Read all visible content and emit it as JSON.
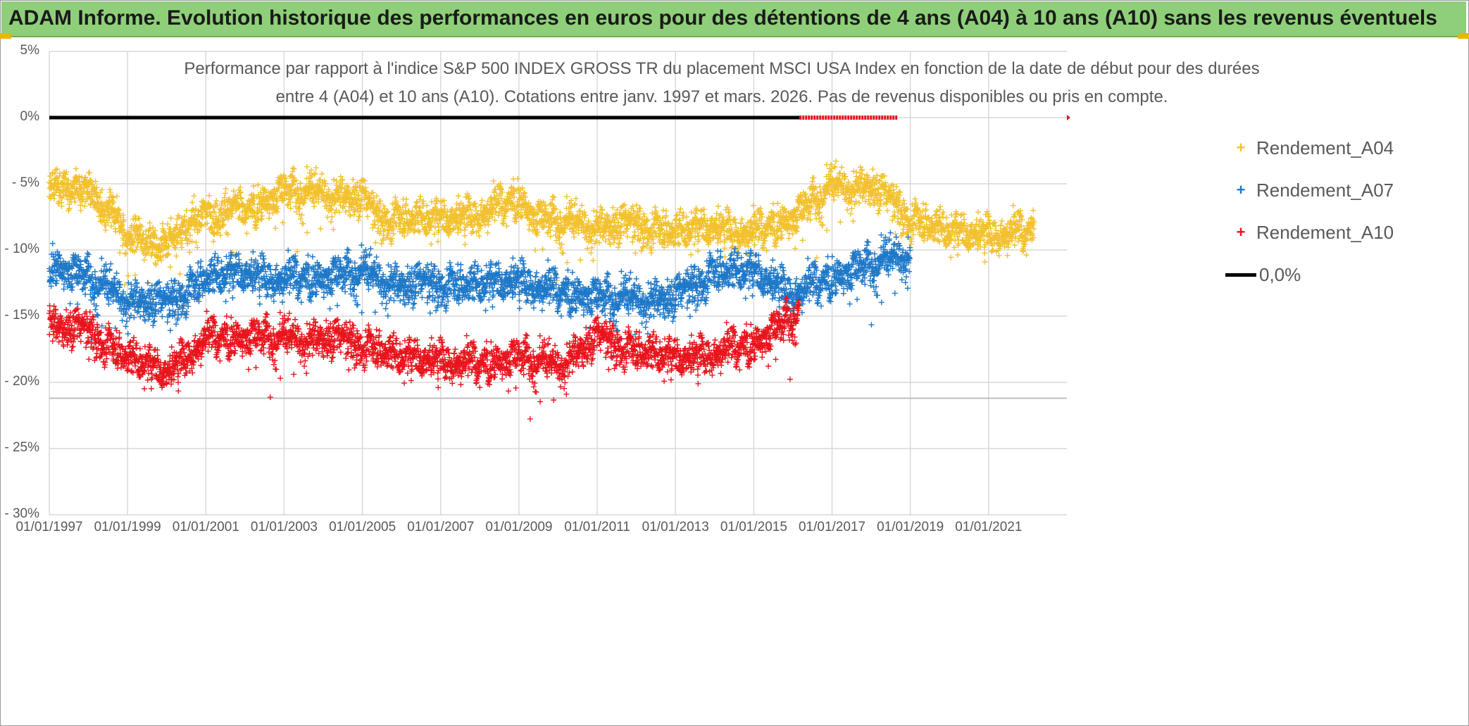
{
  "header": {
    "title": "ADAM Informe. Evolution historique des performances en euros pour des détentions de 4 ans (A04) à 10 ans (A10) sans les revenus éventuels"
  },
  "colors": {
    "header_bg": "#8fcf7a",
    "a04": "#f2c12e",
    "a07": "#1f78c8",
    "a10": "#e8141c",
    "zero": "#000000"
  },
  "chart_data": {
    "type": "scatter",
    "title_line1": "Performance par rapport à l'indice S&P 500 INDEX GROSS TR  du placement MSCI USA Index en fonction de la date de début pour des durées",
    "title_line2": "entre 4 (A04) et 10 ans (A10). Cotations entre janv. 1997 et mars. 2026. Pas de revenus disponibles ou pris en compte.",
    "x_type": "date",
    "xlim": [
      "01/01/1997",
      "01/01/2023"
    ],
    "x_ticks": [
      "01/01/1997",
      "01/01/1999",
      "01/01/2001",
      "01/01/2003",
      "01/01/2005",
      "01/01/2007",
      "01/01/2009",
      "01/01/2011",
      "01/01/2013",
      "01/01/2015",
      "01/01/2017",
      "01/01/2019",
      "01/01/2021"
    ],
    "ylim": [
      -30,
      5
    ],
    "y_ticks": [
      5,
      0,
      -5,
      -10,
      -15,
      -20,
      -25,
      -30
    ],
    "y_tick_labels": [
      "5%",
      "0%",
      "- 5%",
      "- 10%",
      "- 15%",
      "- 20%",
      "- 25%",
      "- 30%"
    ],
    "grid": true,
    "legend_position": "top-right",
    "legend": [
      "Rendement_A04",
      "Rendement_A07",
      "Rendement_A10",
      "0,0%"
    ],
    "series": [
      {
        "name": "Rendement_A04",
        "marker": "plus",
        "x_range": [
          "01/01/1997",
          "01/03/2022"
        ],
        "trend": [
          [
            "01/01/1997",
            -5.5
          ],
          [
            "01/01/1998",
            -5.0
          ],
          [
            "01/06/1998",
            -7.0
          ],
          [
            "01/01/1999",
            -9.0
          ],
          [
            "01/01/2000",
            -9.5
          ],
          [
            "01/01/2001",
            -7.0
          ],
          [
            "01/01/2002",
            -7.0
          ],
          [
            "01/01/2003",
            -5.5
          ],
          [
            "01/01/2004",
            -5.5
          ],
          [
            "01/01/2005",
            -6.0
          ],
          [
            "01/06/2005",
            -7.5
          ],
          [
            "01/01/2007",
            -7.5
          ],
          [
            "01/01/2008",
            -7.0
          ],
          [
            "01/01/2009",
            -6.0
          ],
          [
            "01/06/2009",
            -7.5
          ],
          [
            "01/01/2011",
            -8.0
          ],
          [
            "01/01/2012",
            -8.0
          ],
          [
            "01/01/2013",
            -8.5
          ],
          [
            "01/01/2014",
            -8.0
          ],
          [
            "01/01/2015",
            -8.5
          ],
          [
            "01/01/2016",
            -7.5
          ],
          [
            "01/01/2017",
            -5.0
          ],
          [
            "01/01/2018",
            -5.0
          ],
          [
            "01/01/2019",
            -7.5
          ],
          [
            "01/01/2020",
            -8.5
          ],
          [
            "01/01/2021",
            -8.5
          ],
          [
            "01/03/2022",
            -8.5
          ]
        ],
        "spread": 1.6
      },
      {
        "name": "Rendement_A07",
        "marker": "plus",
        "x_range": [
          "01/01/1997",
          "01/01/2019"
        ],
        "trend": [
          [
            "01/01/1997",
            -11.0
          ],
          [
            "01/01/1998",
            -12.0
          ],
          [
            "01/01/1999",
            -13.5
          ],
          [
            "01/01/2000",
            -14.0
          ],
          [
            "01/01/2001",
            -12.0
          ],
          [
            "01/01/2002",
            -11.5
          ],
          [
            "01/01/2003",
            -12.0
          ],
          [
            "01/01/2004",
            -12.0
          ],
          [
            "01/01/2005",
            -11.5
          ],
          [
            "01/01/2006",
            -12.5
          ],
          [
            "01/01/2007",
            -12.5
          ],
          [
            "01/01/2008",
            -12.5
          ],
          [
            "01/01/2009",
            -12.0
          ],
          [
            "01/01/2010",
            -13.0
          ],
          [
            "01/01/2011",
            -13.5
          ],
          [
            "01/01/2012",
            -13.5
          ],
          [
            "01/01/2013",
            -13.5
          ],
          [
            "01/01/2014",
            -11.5
          ],
          [
            "01/01/2015",
            -11.5
          ],
          [
            "01/01/2016",
            -13.0
          ],
          [
            "01/01/2017",
            -12.0
          ],
          [
            "01/01/2018",
            -11.0
          ],
          [
            "01/01/2019",
            -10.0
          ]
        ],
        "spread": 1.7
      },
      {
        "name": "Rendement_A10",
        "marker": "plus",
        "x_range": [
          "01/01/1997",
          "01/03/2016"
        ],
        "trend": [
          [
            "01/01/1997",
            -15.5
          ],
          [
            "01/01/1998",
            -16.0
          ],
          [
            "01/01/1999",
            -18.0
          ],
          [
            "01/01/2000",
            -19.0
          ],
          [
            "01/01/2001",
            -16.5
          ],
          [
            "01/01/2002",
            -16.5
          ],
          [
            "01/01/2003",
            -16.5
          ],
          [
            "01/01/2004",
            -16.5
          ],
          [
            "01/01/2005",
            -17.0
          ],
          [
            "01/01/2006",
            -18.0
          ],
          [
            "01/01/2007",
            -18.0
          ],
          [
            "01/01/2008",
            -18.5
          ],
          [
            "01/01/2009",
            -18.0
          ],
          [
            "01/01/2010",
            -18.5
          ],
          [
            "01/01/2011",
            -16.5
          ],
          [
            "01/01/2012",
            -17.5
          ],
          [
            "01/01/2013",
            -18.0
          ],
          [
            "01/01/2014",
            -17.5
          ],
          [
            "01/01/2015",
            -17.0
          ],
          [
            "01/01/2016",
            -15.0
          ],
          [
            "01/03/2016",
            -14.0
          ]
        ],
        "spread": 1.6
      },
      {
        "name": "0,0%",
        "type": "line",
        "x_range": [
          "01/01/1997",
          "01/03/2016"
        ],
        "y": 0
      }
    ],
    "annotations": [
      {
        "type": "line",
        "color": "#e8141c",
        "x_range": [
          "01/03/2016",
          "01/09/2018"
        ],
        "y": 0
      }
    ]
  }
}
